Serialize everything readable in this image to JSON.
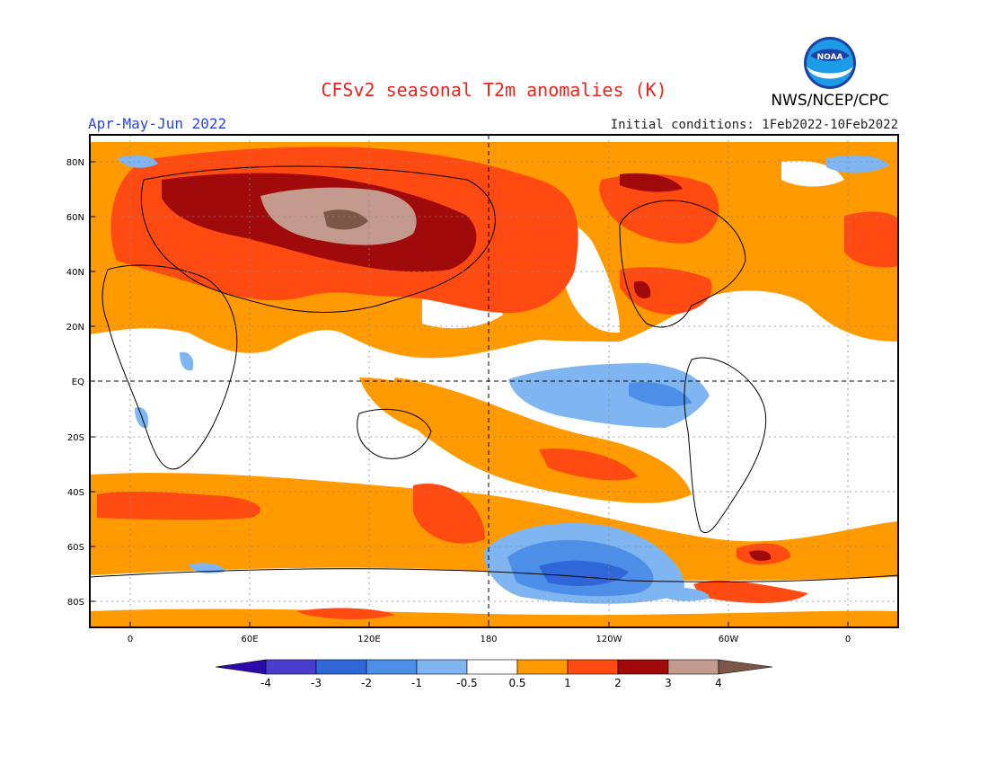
{
  "header": {
    "title": "CFSv2 seasonal T2m anomalies (K)",
    "period": "Apr-May-Jun 2022",
    "initial_conditions": "Initial conditions: 1Feb2022-10Feb2022",
    "agency": "NWS/NCEP/CPC",
    "logo_text": "NOAA"
  },
  "map_axes": {
    "lat_labels": [
      "80N",
      "60N",
      "40N",
      "20N",
      "EQ",
      "20S",
      "40S",
      "60S",
      "80S"
    ],
    "lat_values": [
      80,
      60,
      40,
      20,
      0,
      -20,
      -40,
      -60,
      -80
    ],
    "lon_labels": [
      "0",
      "60E",
      "120E",
      "180",
      "120W",
      "60W",
      "0"
    ],
    "lon_values": [
      0,
      60,
      120,
      180,
      240,
      300,
      360
    ],
    "lat_range": [
      -90,
      90
    ],
    "lon_range": [
      -20,
      380
    ]
  },
  "colorbar": {
    "labels": [
      "-4",
      "-3",
      "-2",
      "-1",
      "-0.5",
      "0.5",
      "1",
      "2",
      "3",
      "4"
    ],
    "bin_colors": [
      "#2a0aa8",
      "#4a3ccc",
      "#2f67d8",
      "#4c8ee8",
      "#7fb6f2",
      "#ffffff",
      "#ff9a00",
      "#ff4a12",
      "#a00a0a",
      "#c49a8e",
      "#7c5646"
    ]
  }
}
